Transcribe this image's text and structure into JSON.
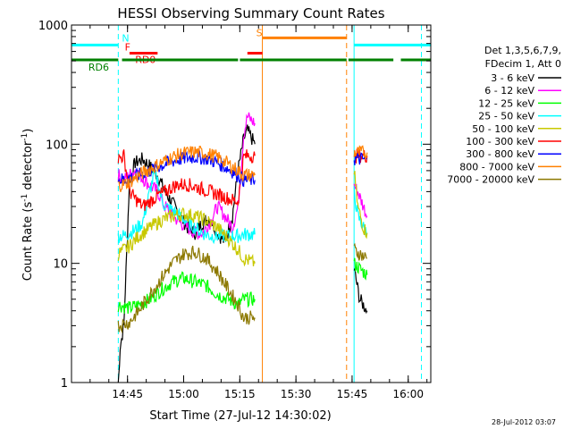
{
  "chart_data": {
    "type": "line",
    "title": "HESSI Observing Summary Count Rates",
    "xlabel": "Start Time (27-Jul-12 14:30:02)",
    "ylabel_main": "Count Rate (s",
    "ylabel_sup1": "-1",
    "ylabel_mid": " detector",
    "ylabel_sup2": "-1",
    "ylabel_end": ")",
    "yscale": "log",
    "ylim": [
      1,
      1000
    ],
    "xlim_minutes": [
      0,
      96
    ],
    "x_ticks": [
      {
        "label": "14:45",
        "t": 14.97
      },
      {
        "label": "15:00",
        "t": 29.97
      },
      {
        "label": "15:15",
        "t": 44.97
      },
      {
        "label": "15:30",
        "t": 59.97
      },
      {
        "label": "15:45",
        "t": 74.97
      },
      {
        "label": "16:00",
        "t": 89.97
      }
    ],
    "y_ticks": [
      {
        "label": "1",
        "v": 1
      },
      {
        "label": "10",
        "v": 10
      },
      {
        "label": "100",
        "v": 100
      },
      {
        "label": "1000",
        "v": 1000
      }
    ],
    "legend": {
      "position": "right",
      "header": [
        "Det 1,3,5,6,7,9,",
        "FDecim 1, Att 0"
      ]
    },
    "series": [
      {
        "name": "3 - 6 keV",
        "color": "#000000",
        "segments": [
          [
            [
              12.5,
              0.9
            ],
            [
              13,
              2
            ],
            [
              14,
              3
            ],
            [
              15.5,
              50
            ],
            [
              17,
              70
            ],
            [
              19,
              75
            ],
            [
              21,
              65
            ],
            [
              23,
              55
            ],
            [
              25,
              40
            ],
            [
              27,
              32
            ],
            [
              29,
              25
            ],
            [
              31,
              20
            ],
            [
              33,
              18
            ],
            [
              35,
              22
            ],
            [
              37,
              24
            ],
            [
              39,
              18
            ],
            [
              41,
              15
            ],
            [
              43,
              25
            ],
            [
              44.5,
              60
            ],
            [
              46,
              110
            ],
            [
              47,
              130
            ],
            [
              49,
              100
            ]
          ],
          [
            [
              75.5,
              9
            ],
            [
              77,
              5
            ],
            [
              79,
              4
            ]
          ]
        ]
      },
      {
        "name": "6 - 12 keV",
        "color": "#ff00ff",
        "segments": [
          [
            [
              12.5,
              55
            ],
            [
              14,
              50
            ],
            [
              15.5,
              55
            ],
            [
              17,
              60
            ],
            [
              19,
              52
            ],
            [
              21,
              45
            ],
            [
              23,
              40
            ],
            [
              25,
              30
            ],
            [
              27,
              25
            ],
            [
              29,
              22
            ],
            [
              31,
              20
            ],
            [
              33,
              18
            ],
            [
              35,
              18
            ],
            [
              37,
              22
            ],
            [
              39,
              30
            ],
            [
              41,
              25
            ],
            [
              43,
              20
            ],
            [
              44.5,
              30
            ],
            [
              46,
              120
            ],
            [
              47,
              170
            ],
            [
              49,
              150
            ]
          ],
          [
            [
              75.5,
              45
            ],
            [
              76.5,
              40
            ],
            [
              78,
              30
            ],
            [
              79,
              25
            ]
          ]
        ]
      },
      {
        "name": "12 - 25 keV",
        "color": "#00ff00",
        "segments": [
          [
            [
              12.5,
              4.5
            ],
            [
              15.5,
              4.2
            ],
            [
              18,
              4.5
            ],
            [
              21,
              5
            ],
            [
              24,
              6
            ],
            [
              27,
              7
            ],
            [
              30,
              7.5
            ],
            [
              33,
              7
            ],
            [
              36,
              6.5
            ],
            [
              39,
              5.5
            ],
            [
              42,
              5
            ],
            [
              44.5,
              4.5
            ],
            [
              46,
              5
            ],
            [
              49,
              5
            ]
          ],
          [
            [
              75.5,
              10
            ],
            [
              77,
              9
            ],
            [
              79,
              8
            ]
          ]
        ]
      },
      {
        "name": "25 - 50 keV",
        "color": "#00ffff",
        "segments": [
          [
            [
              12.5,
              17
            ],
            [
              14,
              17
            ],
            [
              15.5,
              18
            ],
            [
              17,
              19
            ],
            [
              19,
              22
            ],
            [
              20.5,
              35
            ],
            [
              22,
              55
            ],
            [
              23,
              50
            ],
            [
              24,
              35
            ],
            [
              25,
              30
            ],
            [
              27,
              28
            ],
            [
              29,
              25
            ],
            [
              31,
              22
            ],
            [
              33,
              20
            ],
            [
              35,
              18
            ],
            [
              37,
              17
            ],
            [
              39,
              17
            ],
            [
              41,
              17
            ],
            [
              43,
              17
            ],
            [
              44.5,
              17
            ],
            [
              46,
              17.5
            ],
            [
              48.5,
              17.5
            ],
            [
              49,
              17.5
            ]
          ],
          [
            [
              75.5,
              40
            ],
            [
              76.5,
              25
            ],
            [
              78,
              20
            ],
            [
              79,
              18
            ]
          ]
        ]
      },
      {
        "name": "50 - 100 keV",
        "color": "#c8c800",
        "segments": [
          [
            [
              12.5,
              12
            ],
            [
              15.5,
              14
            ],
            [
              18,
              17
            ],
            [
              21,
              20
            ],
            [
              24,
              23
            ],
            [
              27,
              25
            ],
            [
              30,
              26
            ],
            [
              33,
              25
            ],
            [
              36,
              23
            ],
            [
              39,
              20
            ],
            [
              42,
              16
            ],
            [
              44.5,
              13
            ],
            [
              46,
              11
            ],
            [
              49,
              10
            ]
          ],
          [
            [
              75.5,
              60
            ],
            [
              76.5,
              30
            ],
            [
              78,
              20
            ],
            [
              79,
              18
            ]
          ]
        ]
      },
      {
        "name": "100 - 300 keV",
        "color": "#ff0000",
        "segments": [
          [
            [
              12.5,
              75
            ],
            [
              14,
              80
            ],
            [
              15.5,
              40
            ],
            [
              17,
              35
            ],
            [
              19,
              30
            ],
            [
              21,
              33
            ],
            [
              23,
              37
            ],
            [
              25,
              40
            ],
            [
              27,
              44
            ],
            [
              29,
              46
            ],
            [
              31,
              46
            ],
            [
              33,
              44
            ],
            [
              35,
              42
            ],
            [
              37,
              40
            ],
            [
              39,
              38
            ],
            [
              41,
              36
            ],
            [
              43,
              34
            ],
            [
              44.5,
              33
            ],
            [
              46,
              78
            ],
            [
              47,
              80
            ],
            [
              49,
              80
            ]
          ],
          [
            [
              75.5,
              80
            ],
            [
              77,
              80
            ],
            [
              79,
              80
            ]
          ]
        ]
      },
      {
        "name": "300 - 800 keV",
        "color": "#0000ff",
        "segments": [
          [
            [
              12.5,
              50
            ],
            [
              15.5,
              52
            ],
            [
              18,
              55
            ],
            [
              21,
              60
            ],
            [
              24,
              66
            ],
            [
              27,
              72
            ],
            [
              30,
              76
            ],
            [
              33,
              78
            ],
            [
              36,
              76
            ],
            [
              39,
              70
            ],
            [
              42,
              62
            ],
            [
              44.5,
              55
            ],
            [
              46,
              50
            ],
            [
              49,
              50
            ]
          ],
          [
            [
              75.5,
              75
            ],
            [
              77,
              75
            ],
            [
              79,
              75
            ]
          ]
        ]
      },
      {
        "name": "800 - 7000 keV",
        "color": "#ff8000",
        "segments": [
          [
            [
              12.5,
              45
            ],
            [
              15.5,
              48
            ],
            [
              18,
              55
            ],
            [
              21,
              62
            ],
            [
              24,
              70
            ],
            [
              27,
              78
            ],
            [
              30,
              84
            ],
            [
              33,
              86
            ],
            [
              36,
              84
            ],
            [
              39,
              78
            ],
            [
              42,
              68
            ],
            [
              44.5,
              60
            ],
            [
              46,
              55
            ],
            [
              49,
              55
            ]
          ],
          [
            [
              75.5,
              85
            ],
            [
              77,
              85
            ],
            [
              79,
              85
            ]
          ]
        ]
      },
      {
        "name": "7000 - 20000 keV",
        "color": "#8c7800",
        "segments": [
          [
            [
              12.5,
              3
            ],
            [
              15.5,
              3.2
            ],
            [
              18,
              4
            ],
            [
              21,
              5.5
            ],
            [
              24,
              7.5
            ],
            [
              27,
              10
            ],
            [
              30,
              12
            ],
            [
              33,
              12.5
            ],
            [
              36,
              11
            ],
            [
              39,
              8.5
            ],
            [
              42,
              6
            ],
            [
              44.5,
              4.5
            ],
            [
              46,
              3.5
            ],
            [
              49,
              3.5
            ]
          ],
          [
            [
              75.5,
              13
            ],
            [
              77,
              12
            ],
            [
              79,
              11
            ]
          ]
        ]
      }
    ],
    "flag_bars": [
      {
        "label": "N",
        "color": "#00ffff",
        "level": 680,
        "segments": [
          [
            0,
            12.5
          ],
          [
            75.5,
            96
          ]
        ]
      },
      {
        "label": "F",
        "color": "#ff0000",
        "level": 580,
        "segments": [
          [
            15.5,
            23
          ]
        ]
      },
      {
        "label": "RD0",
        "color": "#ff0000",
        "level": 580,
        "segments": [
          [
            47,
            51
          ]
        ]
      },
      {
        "label": "S",
        "color": "#ff8000",
        "level": 780,
        "segments": [
          [
            51,
            73.5
          ]
        ]
      },
      {
        "label": "RD6",
        "color": "#008000",
        "level": 510,
        "segments": [
          [
            0,
            12.5
          ],
          [
            13.5,
            44.5
          ],
          [
            45,
            73.5
          ],
          [
            74,
            86
          ],
          [
            88,
            96
          ]
        ]
      }
    ],
    "vertical_lines": [
      {
        "t": 0,
        "color": "#00ffff",
        "dashed": false
      },
      {
        "t": 12.5,
        "color": "#00ffff",
        "dashed": true
      },
      {
        "t": 51,
        "color": "#ff8000",
        "dashed": false
      },
      {
        "t": 73.5,
        "color": "#ff8000",
        "dashed": true
      },
      {
        "t": 75.5,
        "color": "#00ffff",
        "dashed": false
      },
      {
        "t": 93.5,
        "color": "#00ffff",
        "dashed": true
      }
    ]
  },
  "footer": {
    "timestamp": "28-Jul-2012 03:07"
  }
}
